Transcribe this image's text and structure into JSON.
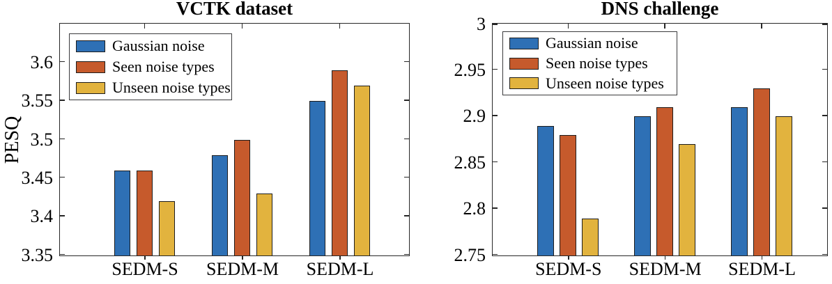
{
  "chart_data": [
    {
      "type": "bar",
      "title": "VCTK dataset",
      "ylabel": "PESQ",
      "xlabel": "",
      "categories": [
        "SEDM-S",
        "SEDM-M",
        "SEDM-L"
      ],
      "series": [
        {
          "name": "Gaussian noise",
          "values": [
            3.46,
            3.48,
            3.55
          ]
        },
        {
          "name": "Seen noise types",
          "values": [
            3.46,
            3.5,
            3.59
          ]
        },
        {
          "name": "Unseen noise types",
          "values": [
            3.42,
            3.43,
            3.57
          ]
        }
      ],
      "ylim": [
        3.35,
        3.65
      ],
      "yticks": [
        3.35,
        3.4,
        3.45,
        3.5,
        3.55,
        3.6
      ],
      "ytick_labels": [
        "3.35",
        "3.4",
        "3.45",
        "3.5",
        "3.55",
        "3.6"
      ],
      "legend_position": "upper-left",
      "grid": false,
      "colors": [
        "#2E70B5",
        "#C65A2C",
        "#E2B33E"
      ]
    },
    {
      "type": "bar",
      "title": "DNS challenge",
      "ylabel": "",
      "xlabel": "",
      "categories": [
        "SEDM-S",
        "SEDM-M",
        "SEDM-L"
      ],
      "series": [
        {
          "name": "Gaussian noise",
          "values": [
            2.89,
            2.9,
            2.91
          ]
        },
        {
          "name": "Seen noise types",
          "values": [
            2.88,
            2.91,
            2.93
          ]
        },
        {
          "name": "Unseen noise types",
          "values": [
            2.79,
            2.87,
            2.9
          ]
        }
      ],
      "ylim": [
        2.75,
        3.0
      ],
      "yticks": [
        2.75,
        2.8,
        2.85,
        2.9,
        2.95,
        3
      ],
      "ytick_labels": [
        "2.75",
        "2.8",
        "2.85",
        "2.9",
        "2.95",
        "3"
      ],
      "legend_position": "upper-left",
      "grid": false,
      "colors": [
        "#2E70B5",
        "#C65A2C",
        "#E2B33E"
      ]
    }
  ]
}
